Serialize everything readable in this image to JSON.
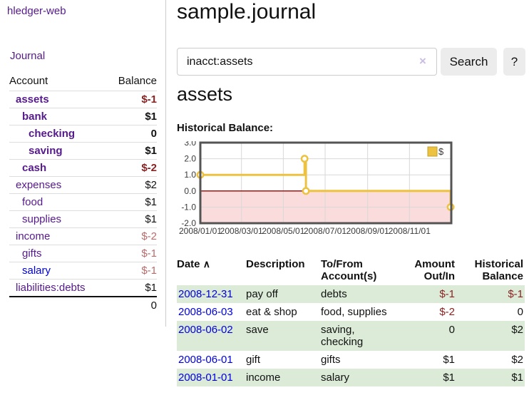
{
  "colors": {
    "accent_purple": "#551a8b",
    "link_blue": "#0000dd",
    "negative_strong": "#8b2222",
    "negative_soft": "#b96b6b",
    "row_stripe_green": "#dcebd8",
    "series_gold": "#edc240",
    "zero_line_red": "#990000",
    "negative_region_pink": "#fadcdc",
    "chart_border_gray": "#545454"
  },
  "sidebar": {
    "brand": "hledger-web",
    "nav_journal": "Journal",
    "accounts_table": {
      "header_account": "Account",
      "header_balance": "Balance",
      "rows": [
        {
          "name": "assets",
          "level": 1,
          "bold": true,
          "balance": "$-1",
          "neg": "strong",
          "link": "purple"
        },
        {
          "name": "bank",
          "level": 2,
          "bold": true,
          "balance": "$1",
          "neg": "none",
          "link": "purple"
        },
        {
          "name": "checking",
          "level": 3,
          "bold": true,
          "balance": "0",
          "neg": "none",
          "link": "purple"
        },
        {
          "name": "saving",
          "level": 3,
          "bold": true,
          "balance": "$1",
          "neg": "none",
          "link": "purple"
        },
        {
          "name": "cash",
          "level": 2,
          "bold": true,
          "balance": "$-2",
          "neg": "strong",
          "link": "purple"
        },
        {
          "name": "expenses",
          "level": 1,
          "bold": false,
          "balance": "$2",
          "neg": "none",
          "link": "purple"
        },
        {
          "name": "food",
          "level": 2,
          "bold": false,
          "balance": "$1",
          "neg": "none",
          "link": "purple"
        },
        {
          "name": "supplies",
          "level": 2,
          "bold": false,
          "balance": "$1",
          "neg": "none",
          "link": "purple"
        },
        {
          "name": "income",
          "level": 1,
          "bold": false,
          "balance": "$-2",
          "neg": "soft",
          "link": "purple"
        },
        {
          "name": "gifts",
          "level": 2,
          "bold": false,
          "balance": "$-1",
          "neg": "soft",
          "link": "purple"
        },
        {
          "name": "salary",
          "level": 2,
          "bold": false,
          "balance": "$-1",
          "neg": "soft",
          "link": "blue"
        },
        {
          "name": "liabilities:debts",
          "level": 1,
          "bold": false,
          "balance": "$1",
          "neg": "none",
          "link": "purple"
        }
      ],
      "total": "0"
    }
  },
  "main": {
    "title": "sample.journal",
    "search": {
      "value": "inacct:assets",
      "clear_icon": "×",
      "search_button": "Search",
      "help_button": "?"
    },
    "account_heading": "assets",
    "chart_title": "Historical Balance:",
    "register_table": {
      "headers": {
        "date": "Date",
        "sort_icon": "∧",
        "description": "Description",
        "accounts": "To/From Account(s)",
        "amount": "Amount Out/In",
        "balance": "Historical Balance"
      },
      "rows": [
        {
          "date": "2008-12-31",
          "description": "pay off",
          "accounts": "debts",
          "amount": "$-1",
          "amount_negative": true,
          "balance": "$-1",
          "balance_negative": true
        },
        {
          "date": "2008-06-03",
          "description": "eat & shop",
          "accounts": "food, supplies",
          "amount": "$-2",
          "amount_negative": true,
          "balance": "0",
          "balance_negative": false
        },
        {
          "date": "2008-06-02",
          "description": "save",
          "accounts": "saving, checking",
          "amount": "0",
          "amount_negative": false,
          "balance": "$2",
          "balance_negative": false
        },
        {
          "date": "2008-06-01",
          "description": "gift",
          "accounts": "gifts",
          "amount": "$1",
          "amount_negative": false,
          "balance": "$2",
          "balance_negative": false
        },
        {
          "date": "2008-01-01",
          "description": "income",
          "accounts": "salary",
          "amount": "$1",
          "amount_negative": false,
          "balance": "$1",
          "balance_negative": false
        }
      ]
    }
  },
  "chart_data": {
    "type": "line",
    "step": true,
    "title": "Historical Balance:",
    "series": [
      {
        "name": "$",
        "points": [
          [
            "2008-01-01",
            1.0
          ],
          [
            "2008-06-01",
            2.0
          ],
          [
            "2008-06-03",
            0.0
          ],
          [
            "2008-12-31",
            -1.0
          ]
        ]
      }
    ],
    "x_domain": [
      "2008-01-01",
      "2009-01-01"
    ],
    "x_tick_labels": [
      "2008/01/01",
      "2008/03/01",
      "2008/05/01",
      "2008/07/01",
      "2008/09/01",
      "2008/11/01"
    ],
    "y_ticks": [
      3.0,
      2.0,
      1.0,
      0.0,
      -1.0,
      -2.0
    ],
    "ylim": [
      -2.0,
      3.0
    ],
    "grid": true,
    "legend": {
      "label": "$",
      "position": "top-right"
    },
    "negative_region_shaded": true
  }
}
